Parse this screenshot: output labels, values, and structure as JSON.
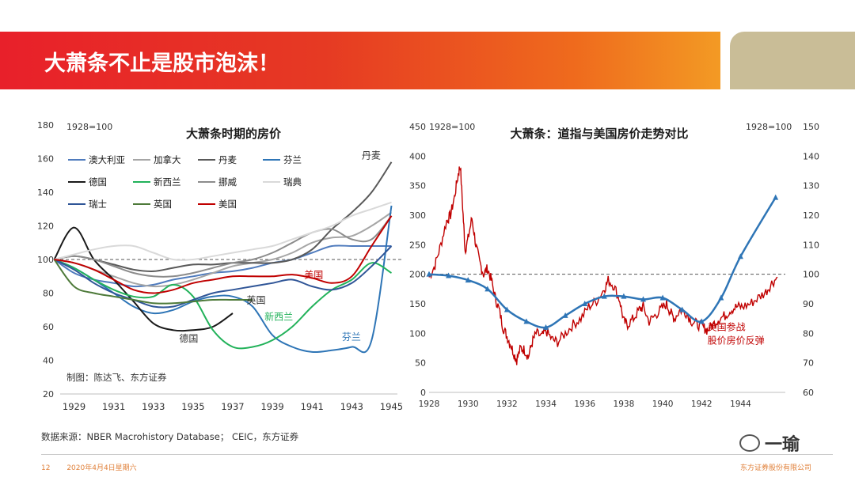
{
  "slide": {
    "title": "大萧条不止是股市泡沫！",
    "source": "数据来源：NBER Macrohistory Database； CEIC，东方证券",
    "page_number": "12",
    "date": "2020年4月4日星期六",
    "company": "东方证券股份有限公司",
    "watermark": "一瑜"
  },
  "colors": {
    "banner_red": "#e8202a",
    "banner_orange": "#f39a24",
    "tab": "#c9bd97"
  },
  "chart_data": [
    {
      "type": "line",
      "title": "大萧条时期的房价",
      "base_label": "1928=100",
      "credit": "制图：陈达飞、东方证券",
      "xlim": [
        1928.3,
        1945.3
      ],
      "ylim": [
        20,
        180
      ],
      "yticks": [
        20,
        40,
        60,
        80,
        100,
        120,
        140,
        160,
        180
      ],
      "xticks": [
        1929,
        1931,
        1933,
        1935,
        1937,
        1939,
        1941,
        1943,
        1945
      ],
      "reference_y": 100,
      "series": [
        {
          "name": "澳大利亚",
          "color": "#4f7bbd",
          "x": [
            1928,
            1929,
            1930,
            1931,
            1932,
            1933,
            1934,
            1935,
            1936,
            1937,
            1938,
            1939,
            1940,
            1941,
            1942,
            1943,
            1944,
            1945
          ],
          "y": [
            100,
            92,
            88,
            86,
            84,
            85,
            88,
            90,
            92,
            93,
            95,
            98,
            100,
            104,
            108,
            108,
            108,
            108
          ]
        },
        {
          "name": "加拿大",
          "color": "#a6a6a6",
          "x": [
            1928,
            1929,
            1930,
            1931,
            1932,
            1933,
            1934,
            1935,
            1936,
            1937,
            1938,
            1939,
            1940,
            1941,
            1942,
            1943,
            1944,
            1945
          ],
          "y": [
            100,
            98,
            94,
            90,
            86,
            84,
            85,
            88,
            92,
            96,
            98,
            100,
            104,
            110,
            113,
            114,
            120,
            128
          ]
        },
        {
          "name": "丹麦",
          "color": "#595959",
          "x": [
            1928,
            1929,
            1930,
            1931,
            1932,
            1933,
            1934,
            1935,
            1936,
            1937,
            1938,
            1939,
            1940,
            1941,
            1942,
            1943,
            1944,
            1945
          ],
          "y": [
            100,
            102,
            100,
            97,
            94,
            93,
            95,
            97,
            97,
            98,
            98,
            98,
            100,
            106,
            118,
            128,
            140,
            158
          ]
        },
        {
          "name": "芬兰",
          "color": "#2e75b6",
          "x": [
            1928,
            1929,
            1930,
            1931,
            1932,
            1933,
            1934,
            1935,
            1936,
            1937,
            1938,
            1939,
            1940,
            1941,
            1942,
            1943,
            1944,
            1945
          ],
          "y": [
            100,
            95,
            88,
            80,
            72,
            68,
            70,
            75,
            78,
            78,
            72,
            55,
            48,
            45,
            46,
            48,
            52,
            132
          ]
        },
        {
          "name": "德国",
          "color": "#1a1a1a",
          "x": [
            1928,
            1929,
            1930,
            1931,
            1932,
            1933,
            1934,
            1935,
            1936,
            1937
          ],
          "y": [
            100,
            119,
            100,
            88,
            75,
            62,
            58,
            58,
            60,
            68
          ]
        },
        {
          "name": "新西兰",
          "color": "#22b25a",
          "x": [
            1928,
            1929,
            1930,
            1931,
            1932,
            1933,
            1934,
            1935,
            1936,
            1937,
            1938,
            1939,
            1940,
            1941,
            1942,
            1943,
            1944,
            1945
          ],
          "y": [
            100,
            95,
            88,
            82,
            78,
            78,
            85,
            78,
            58,
            48,
            48,
            52,
            60,
            72,
            82,
            88,
            98,
            92
          ]
        },
        {
          "name": "挪威",
          "color": "#8c8c8c",
          "x": [
            1928,
            1929,
            1930,
            1931,
            1932,
            1933,
            1934,
            1935,
            1936,
            1937,
            1938,
            1939,
            1940,
            1941,
            1942,
            1943,
            1944,
            1945
          ],
          "y": [
            100,
            102,
            100,
            96,
            92,
            90,
            90,
            92,
            95,
            98,
            100,
            104,
            110,
            116,
            118,
            112,
            112,
            126
          ]
        },
        {
          "name": "瑞典",
          "color": "#d9d9d9",
          "x": [
            1928,
            1929,
            1930,
            1931,
            1932,
            1933,
            1934,
            1935,
            1936,
            1937,
            1938,
            1939,
            1940,
            1941,
            1942,
            1943,
            1944,
            1945
          ],
          "y": [
            100,
            103,
            106,
            108,
            108,
            104,
            100,
            100,
            102,
            104,
            106,
            108,
            112,
            116,
            120,
            126,
            130,
            134
          ]
        },
        {
          "name": "瑞士",
          "color": "#2f5597",
          "x": [
            1928,
            1929,
            1930,
            1931,
            1932,
            1933,
            1934,
            1935,
            1936,
            1937,
            1938,
            1939,
            1940,
            1941,
            1942,
            1943,
            1944,
            1945
          ],
          "y": [
            100,
            94,
            86,
            80,
            76,
            72,
            72,
            76,
            80,
            82,
            84,
            86,
            88,
            84,
            82,
            86,
            96,
            108
          ]
        },
        {
          "name": "英国",
          "color": "#4e7a3a",
          "x": [
            1928,
            1929,
            1930,
            1931,
            1932,
            1933,
            1934,
            1935,
            1936,
            1937,
            1938
          ],
          "y": [
            100,
            84,
            80,
            78,
            76,
            74,
            74,
            75,
            76,
            76,
            76
          ]
        },
        {
          "name": "美国",
          "color": "#c00000",
          "x": [
            1928,
            1929,
            1930,
            1931,
            1932,
            1933,
            1934,
            1935,
            1936,
            1937,
            1938,
            1939,
            1940,
            1941,
            1942,
            1943,
            1944,
            1945
          ],
          "y": [
            100,
            98,
            94,
            88,
            82,
            80,
            82,
            86,
            88,
            90,
            90,
            90,
            91,
            89,
            86,
            90,
            108,
            126
          ]
        }
      ],
      "annotations": [
        {
          "text": "丹麦",
          "x": 1943.5,
          "y": 160,
          "color": "#333333"
        },
        {
          "text": "美国",
          "x": 1940.6,
          "y": 89,
          "color": "#c00000"
        },
        {
          "text": "英国",
          "x": 1937.7,
          "y": 74,
          "color": "#333333"
        },
        {
          "text": "新西兰",
          "x": 1938.6,
          "y": 64,
          "color": "#22b25a"
        },
        {
          "text": "德国",
          "x": 1934.3,
          "y": 51,
          "color": "#333333"
        },
        {
          "text": "芬兰",
          "x": 1942.5,
          "y": 52,
          "color": "#2e75b6"
        }
      ]
    },
    {
      "type": "line",
      "title": "大萧条：道指与美国房价走势对比",
      "left_label": "1928=100",
      "right_label": "1928=100",
      "xlim": [
        1928,
        1946.3
      ],
      "ylim_left": [
        0,
        450
      ],
      "ylim_right": [
        60,
        150
      ],
      "yticks_left": [
        0,
        50,
        100,
        150,
        200,
        250,
        300,
        350,
        400,
        450
      ],
      "yticks_right": [
        60,
        70,
        80,
        90,
        100,
        110,
        120,
        130,
        140,
        150
      ],
      "xticks": [
        1928,
        1930,
        1932,
        1934,
        1936,
        1938,
        1940,
        1942,
        1944
      ],
      "reference_right": 100,
      "dow": {
        "name": "道指",
        "color": "#c00000",
        "axis": "left",
        "x": [
          1928.0,
          1928.3,
          1928.6,
          1928.9,
          1929.1,
          1929.3,
          1929.5,
          1929.6,
          1929.75,
          1929.85,
          1930.0,
          1930.2,
          1930.4,
          1930.6,
          1930.8,
          1931.0,
          1931.2,
          1931.4,
          1931.6,
          1931.8,
          1932.0,
          1932.2,
          1932.4,
          1932.5,
          1932.7,
          1932.9,
          1933.1,
          1933.3,
          1933.5,
          1933.8,
          1934.0,
          1934.3,
          1934.6,
          1935.0,
          1935.4,
          1935.8,
          1936.2,
          1936.6,
          1937.0,
          1937.2,
          1937.5,
          1937.8,
          1938.0,
          1938.2,
          1938.5,
          1938.8,
          1939.0,
          1939.3,
          1939.6,
          1939.9,
          1940.2,
          1940.4,
          1940.6,
          1940.9,
          1941.2,
          1941.5,
          1941.8,
          1942.1,
          1942.3,
          1942.6,
          1942.9,
          1943.2,
          1943.5,
          1943.8,
          1944.1,
          1944.5,
          1944.9,
          1945.3,
          1945.6,
          1945.9
        ],
        "y": [
          195,
          215,
          250,
          290,
          300,
          330,
          370,
          385,
          300,
          240,
          260,
          295,
          250,
          220,
          200,
          210,
          190,
          160,
          140,
          110,
          95,
          80,
          62,
          55,
          75,
          72,
          60,
          85,
          100,
          95,
          105,
          90,
          85,
          100,
          115,
          125,
          145,
          155,
          175,
          190,
          180,
          155,
          120,
          115,
          125,
          140,
          145,
          120,
          130,
          140,
          150,
          135,
          125,
          140,
          135,
          120,
          115,
          110,
          105,
          115,
          125,
          130,
          140,
          145,
          145,
          150,
          160,
          170,
          185,
          195
        ]
      },
      "housing": {
        "name": "美国房价",
        "color": "#2e75b6",
        "axis": "right",
        "x": [
          1928,
          1929,
          1930,
          1931,
          1932,
          1933,
          1934,
          1935,
          1936,
          1937,
          1938,
          1939,
          1940,
          1941,
          1942,
          1943,
          1944,
          1945.8
        ],
        "y": [
          100,
          99.5,
          98,
          95,
          88,
          84,
          82,
          86,
          90,
          92.5,
          92.5,
          91.5,
          92,
          88,
          84,
          92,
          106,
          126
        ]
      },
      "annotation": {
        "line1": "美国参战",
        "line2": "股价房价反弹",
        "x": 1942.3,
        "y_right": 81,
        "color": "#c00000"
      }
    }
  ]
}
